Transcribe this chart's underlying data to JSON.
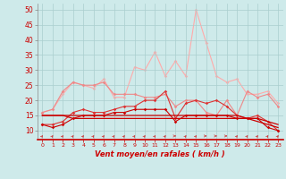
{
  "x": [
    0,
    1,
    2,
    3,
    4,
    5,
    6,
    7,
    8,
    9,
    10,
    11,
    12,
    13,
    14,
    15,
    16,
    17,
    18,
    19,
    20,
    21,
    22,
    23
  ],
  "line_dark1": [
    15,
    15,
    15,
    14,
    14,
    14,
    14,
    14,
    14,
    14,
    14,
    14,
    14,
    14,
    14,
    14,
    14,
    14,
    14,
    14,
    14,
    14,
    13,
    12
  ],
  "line_dark2": [
    15,
    15,
    15,
    15,
    15,
    15,
    15,
    15,
    15,
    15,
    15,
    15,
    15,
    15,
    15,
    15,
    15,
    15,
    15,
    15,
    14,
    13,
    12,
    11
  ],
  "line_dark3": [
    12,
    11,
    12,
    14,
    15,
    15,
    15,
    16,
    16,
    17,
    17,
    17,
    17,
    13,
    15,
    15,
    15,
    15,
    15,
    14,
    14,
    14,
    11,
    10
  ],
  "line_med": [
    12,
    12,
    13,
    16,
    17,
    16,
    16,
    17,
    18,
    18,
    20,
    20,
    23,
    14,
    19,
    20,
    19,
    20,
    18,
    15,
    14,
    15,
    13,
    10
  ],
  "line_light1": [
    16,
    17,
    23,
    26,
    25,
    25,
    26,
    22,
    22,
    22,
    21,
    21,
    22,
    18,
    20,
    20,
    16,
    15,
    20,
    15,
    23,
    21,
    22,
    18
  ],
  "line_light2": [
    16,
    17,
    22,
    26,
    25,
    24,
    27,
    21,
    21,
    31,
    30,
    36,
    28,
    33,
    28,
    50,
    39,
    28,
    26,
    27,
    22,
    22,
    23,
    19
  ],
  "xlabel": "Vent moyen/en rafales ( km/h )",
  "ylim": [
    7,
    52
  ],
  "yticks": [
    10,
    15,
    20,
    25,
    30,
    35,
    40,
    45,
    50
  ],
  "bg_color": "#ceeaea",
  "grid_color": "#aacece",
  "color_dark": "#cc0000",
  "color_med": "#dd3333",
  "color_light1": "#ee8888",
  "color_light2": "#ffaaaa",
  "arrow_color": "#cc3333"
}
